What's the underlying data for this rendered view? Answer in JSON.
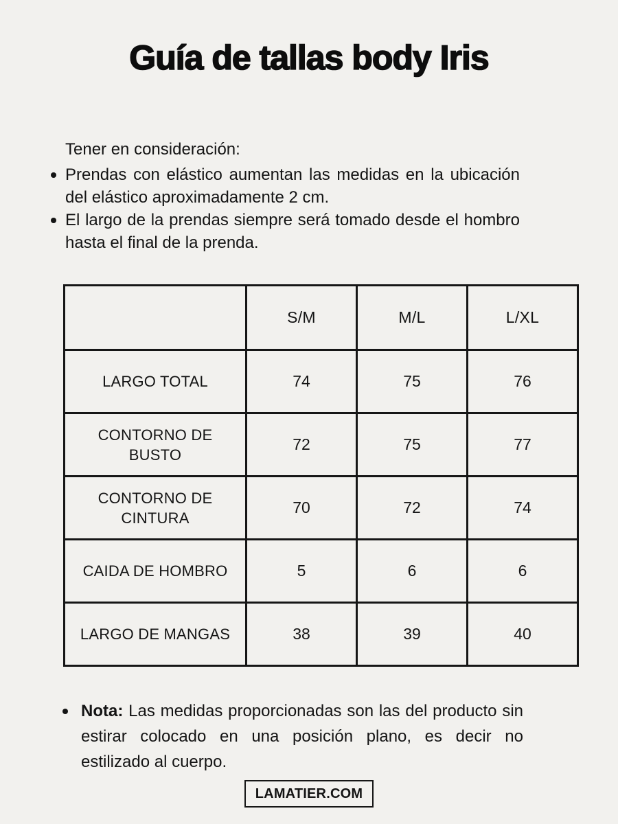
{
  "page": {
    "title": "Guía de tallas body Iris"
  },
  "intro": {
    "heading": "Tener en consideración:",
    "bullets": [
      "Prendas con elástico aumentan las medidas en la ubicación del elástico aproximadamente 2 cm.",
      "El largo de la prendas siempre será tomado desde el hombro hasta el final de la prenda."
    ]
  },
  "table": {
    "columns": [
      "",
      "S/M",
      "M/L",
      "L/XL"
    ],
    "rows": [
      {
        "label": "LARGO TOTAL",
        "values": [
          "74",
          "75",
          "76"
        ]
      },
      {
        "label": "CONTORNO DE BUSTO",
        "values": [
          "72",
          "75",
          "77"
        ]
      },
      {
        "label": "CONTORNO DE CINTURA",
        "values": [
          "70",
          "72",
          "74"
        ]
      },
      {
        "label": "CAIDA DE HOMBRO",
        "values": [
          "5",
          "6",
          "6"
        ]
      },
      {
        "label": "LARGO DE MANGAS",
        "values": [
          "38",
          "39",
          "40"
        ]
      }
    ]
  },
  "note": {
    "label": "Nota:",
    "text": " Las medidas proporcionadas son las del producto sin estirar colocado en una posición plano, es decir no estilizado al cuerpo."
  },
  "footer": {
    "brand": "LAMATIER.COM"
  },
  "colors": {
    "background": "#f2f1ee",
    "text": "#141414",
    "table_border": "#161616",
    "badge_border": "#161616"
  }
}
